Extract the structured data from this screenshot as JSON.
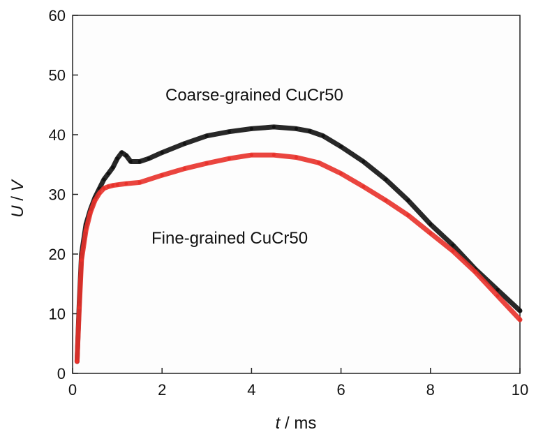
{
  "chart_data": {
    "type": "line",
    "title": "",
    "xlabel_var": "t",
    "xlabel_unit": " / ms",
    "ylabel_var": "U",
    "ylabel_sep": " / ",
    "ylabel_unit": "V",
    "xlim": [
      0,
      10
    ],
    "ylim": [
      0,
      60
    ],
    "xticks": [
      0,
      2,
      4,
      6,
      8,
      10
    ],
    "yticks": [
      0,
      10,
      20,
      30,
      40,
      50,
      60
    ],
    "grid": false,
    "annotations": [
      {
        "text": "Coarse-grained CuCr50",
        "series": "coarse"
      },
      {
        "text": "Fine-grained CuCr50",
        "series": "fine"
      }
    ],
    "series": [
      {
        "id": "coarse",
        "color": "#111111",
        "x": [
          0.1,
          0.15,
          0.2,
          0.3,
          0.4,
          0.5,
          0.6,
          0.7,
          0.8,
          0.9,
          1.0,
          1.1,
          1.2,
          1.3,
          1.5,
          1.7,
          2.0,
          2.5,
          3.0,
          3.5,
          4.0,
          4.5,
          5.0,
          5.3,
          5.6,
          6.0,
          6.5,
          7.0,
          7.5,
          8.0,
          8.5,
          9.0,
          9.5,
          10.0
        ],
        "y": [
          2,
          12,
          20,
          25,
          27.5,
          29.5,
          31,
          32.5,
          33.5,
          34.5,
          36,
          37,
          36.5,
          35.5,
          35.5,
          36,
          37,
          38.5,
          39.8,
          40.5,
          41,
          41.3,
          41,
          40.6,
          39.8,
          38,
          35.5,
          32.5,
          29,
          25,
          21.5,
          17.5,
          14,
          10.5
        ]
      },
      {
        "id": "fine",
        "color": "#e8312a",
        "x": [
          0.1,
          0.15,
          0.2,
          0.3,
          0.4,
          0.5,
          0.6,
          0.7,
          0.8,
          0.9,
          1.0,
          1.2,
          1.5,
          2.0,
          2.5,
          3.0,
          3.5,
          4.0,
          4.5,
          5.0,
          5.5,
          6.0,
          6.5,
          7.0,
          7.5,
          8.0,
          8.5,
          9.0,
          9.5,
          10.0
        ],
        "y": [
          2,
          11,
          19,
          24,
          27,
          29,
          30.2,
          31,
          31.3,
          31.5,
          31.6,
          31.8,
          32,
          33.2,
          34.3,
          35.2,
          36,
          36.6,
          36.6,
          36.2,
          35.3,
          33.5,
          31.3,
          29,
          26.5,
          23.5,
          20.5,
          17,
          13,
          9
        ]
      }
    ]
  }
}
